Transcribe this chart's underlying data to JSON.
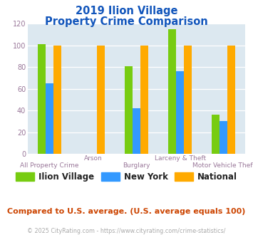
{
  "title_line1": "2019 Ilion Village",
  "title_line2": "Property Crime Comparison",
  "categories": [
    "All Property Crime",
    "Arson",
    "Burglary",
    "Larceny & Theft",
    "Motor Vehicle Theft"
  ],
  "ilion_village": [
    101,
    null,
    81,
    115,
    36
  ],
  "new_york": [
    65,
    null,
    42,
    76,
    30
  ],
  "national": [
    100,
    100,
    100,
    100,
    100
  ],
  "colors": {
    "ilion_village": "#77cc11",
    "new_york": "#3399ff",
    "national": "#ffaa00"
  },
  "ylabel_max": 120,
  "ylabel_step": 20,
  "footnote1": "Compared to U.S. average. (U.S. average equals 100)",
  "footnote2": "© 2025 CityRating.com - https://www.cityrating.com/crime-statistics/",
  "title_color": "#1155bb",
  "footnote1_color": "#cc4400",
  "footnote2_color": "#aaaaaa",
  "axis_label_color": "#997799",
  "plot_bg_color": "#dce8f0",
  "grid_color": "#ffffff"
}
